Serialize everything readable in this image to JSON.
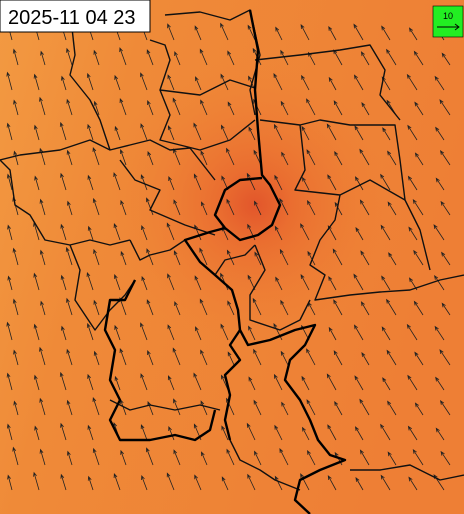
{
  "header": {
    "timestamp": "2025-11 04 23"
  },
  "legend": {
    "label": "10"
  }
}
